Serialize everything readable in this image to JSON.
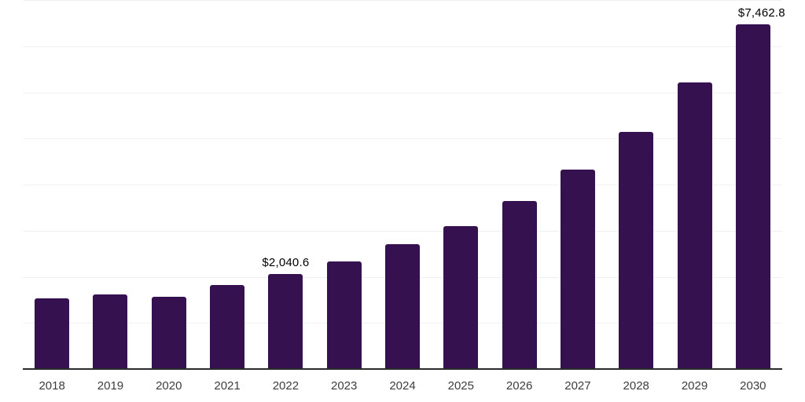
{
  "chart_data": {
    "type": "bar",
    "title": "",
    "xlabel": "",
    "ylabel": "",
    "categories": [
      "2018",
      "2019",
      "2020",
      "2021",
      "2022",
      "2023",
      "2024",
      "2025",
      "2026",
      "2027",
      "2028",
      "2029",
      "2030"
    ],
    "values": [
      1514,
      1594,
      1553,
      1808,
      2040.6,
      2313,
      2682,
      3084,
      3623,
      4304,
      5120,
      6192,
      7462.8
    ],
    "data_labels": [
      "",
      "",
      "",
      "",
      "$2,040.6",
      "",
      "",
      "",
      "",
      "",
      "",
      "",
      "$7,462.8"
    ],
    "ylim": [
      0,
      8000
    ],
    "grid_interval": 1000,
    "grid": "horizontal-only",
    "legend_position": "none",
    "bar_color": "#361150",
    "gridline_color": "#f1f1f1",
    "axis_line_color": "#2b2b2b",
    "tick_label_color": "#3d3d3d",
    "data_label_color": "#000000"
  }
}
